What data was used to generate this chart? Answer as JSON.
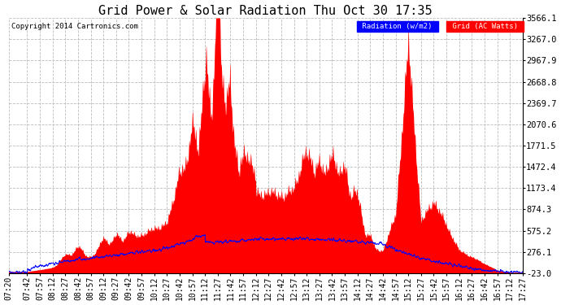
{
  "title": "Grid Power & Solar Radiation Thu Oct 30 17:35",
  "copyright": "Copyright 2014 Cartronics.com",
  "y_ticks": [
    -23.0,
    276.1,
    575.2,
    874.3,
    1173.4,
    1472.4,
    1771.5,
    2070.6,
    2369.7,
    2668.8,
    2967.9,
    3267.0,
    3566.1
  ],
  "ylim": [
    -23.0,
    3566.1
  ],
  "legend_radiation": "Radiation (w/m2)",
  "legend_grid": "Grid (AC Watts)",
  "bg_color": "#ffffff",
  "plot_bg_color": "#ffffff",
  "grid_color": "#bbbbbb",
  "red_fill_color": "#ff0000",
  "blue_line_color": "#0000ff",
  "title_fontsize": 11,
  "x_label_fontsize": 7,
  "y_label_fontsize": 7.5
}
